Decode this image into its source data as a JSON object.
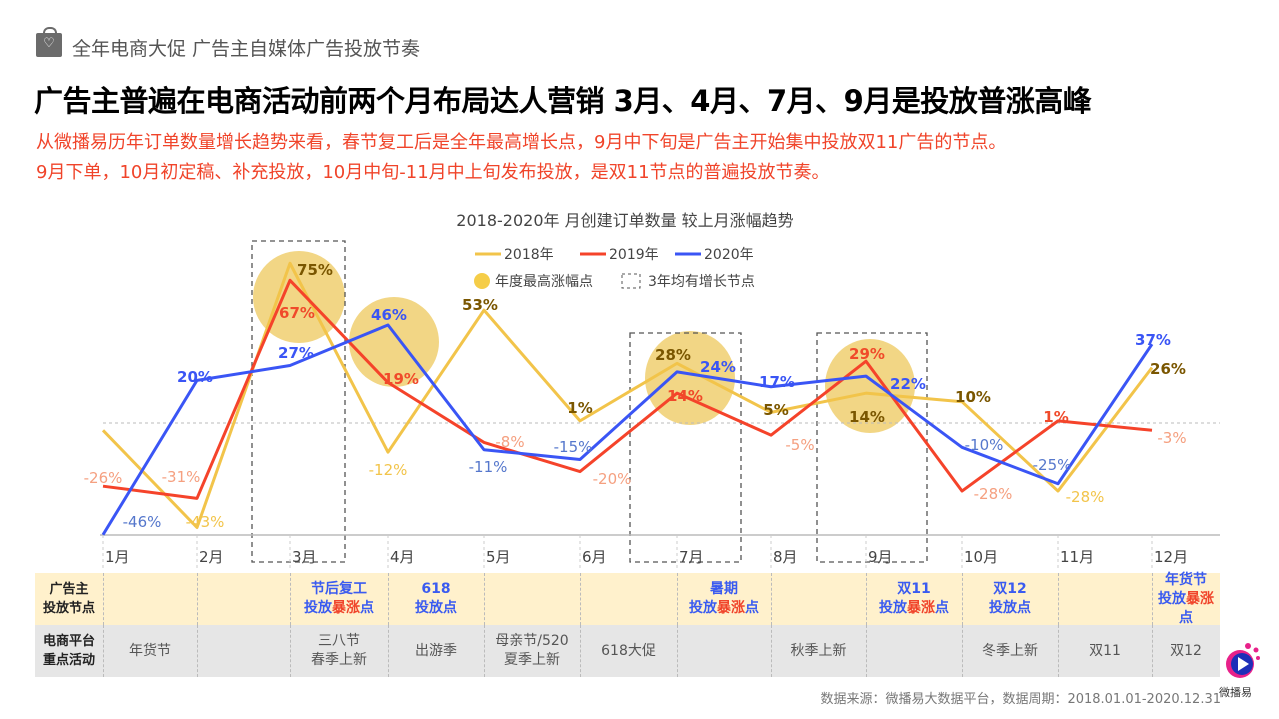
{
  "header": {
    "topic": "全年电商大促 广告主自媒体广告投放节奏",
    "headline": "广告主普遍在电商活动前两个月布局达人营销 3月、4月、7月、9月是投放普涨高峰",
    "subtitle_1": "从微播易历年订单数量增长趋势来看，春节复工后是全年最高增长点，9月中下旬是广告主开始集中投放双11广告的节点。",
    "subtitle_2": "9月下单，10月初定稿、补充投放，10月中旬-11月中上旬发布投放，是双11节点的普遍投放节奏。"
  },
  "chart_data": {
    "type": "line",
    "title": "2018-2020年 月创建订单数量 较上月涨幅趋势",
    "categories": [
      "1月",
      "2月",
      "3月",
      "4月",
      "5月",
      "6月",
      "7月",
      "8月",
      "9月",
      "10月",
      "11月",
      "12月"
    ],
    "series": [
      {
        "name": "2018年",
        "color": "#f2c44a",
        "values": [
          -3,
          -43,
          75,
          -12,
          53,
          1,
          28,
          5,
          14,
          10,
          -28,
          26
        ],
        "labels": [
          "",
          "-43%",
          "75%",
          "-12%",
          "53%",
          "1%",
          "28%",
          "5%",
          "14%",
          "10%",
          "-28%",
          "26%"
        ]
      },
      {
        "name": "2019年",
        "color": "#f5432a",
        "values": [
          -26,
          -31,
          67,
          19,
          -8,
          -20,
          14,
          -5,
          29,
          -28,
          1,
          -3
        ],
        "labels": [
          "-26%",
          "-31%",
          "67%",
          "19%",
          "-8%",
          "-20%",
          "14%",
          "-5%",
          "29%",
          "-28%",
          "1%",
          "-3%"
        ]
      },
      {
        "name": "2020年",
        "color": "#3a55f5",
        "values": [
          -46,
          20,
          27,
          46,
          -11,
          -15,
          24,
          17,
          22,
          -10,
          -25,
          37
        ],
        "labels": [
          "-46%",
          "20%",
          "27%",
          "46%",
          "-11%",
          "-15%",
          "24%",
          "17%",
          "22%",
          "-10%",
          "-25%",
          "37%"
        ]
      }
    ],
    "legend_marker_peak": "年度最高涨幅点",
    "legend_marker_box": "3年均有增长节点",
    "peak_points": [
      {
        "month": "3月",
        "series": "2018年"
      },
      {
        "month": "4月",
        "series": "2020年"
      },
      {
        "month": "7月",
        "series": "2018年"
      },
      {
        "month": "9月",
        "series": "2019年"
      }
    ],
    "growth_boxes": [
      "3月",
      "7月",
      "9月"
    ],
    "zero_line": true,
    "legend_placement": "top-center"
  },
  "table": {
    "row1_header": [
      "广告主",
      "投放节点"
    ],
    "row2_header": [
      "电商平台",
      "重点活动"
    ],
    "row1": [
      [],
      [],
      [
        [
          "节后复工"
        ],
        [
          "投放",
          "暴涨",
          "点"
        ]
      ],
      [
        [
          "618"
        ],
        [
          "投放点"
        ]
      ],
      [],
      [],
      [
        [
          "暑期"
        ],
        [
          "投放",
          "暴涨",
          "点"
        ]
      ],
      [],
      [
        [
          "双11"
        ],
        [
          "投放",
          "暴涨",
          "点"
        ]
      ],
      [
        [
          "双12"
        ],
        [
          "投放点"
        ]
      ],
      [],
      [
        [
          "年货节"
        ],
        [
          "投放",
          "暴涨",
          "点"
        ]
      ]
    ],
    "row2": [
      [
        "年货节"
      ],
      [],
      [
        "三八节",
        "春季上新"
      ],
      [
        "出游季"
      ],
      [
        "母亲节/520",
        "夏季上新"
      ],
      [
        "618大促"
      ],
      [],
      [
        "秋季上新"
      ],
      [],
      [
        "冬季上新"
      ],
      [
        "双11"
      ],
      [
        "双12"
      ]
    ]
  },
  "footer": {
    "source": "数据来源：微播易大数据平台，数据周期：2018.01.01-2020.12.31",
    "logo_text": "微播易"
  }
}
